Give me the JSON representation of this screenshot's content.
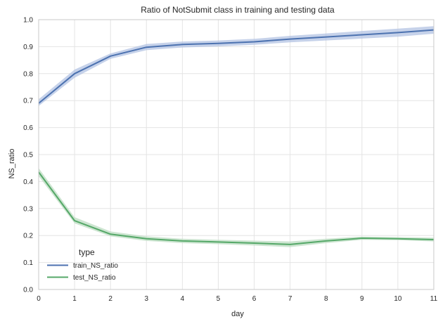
{
  "chart_data": {
    "type": "line",
    "title": "Ratio of NotSubmit class in training and testing data",
    "xlabel": "day",
    "ylabel": "NS_ratio",
    "x": [
      0,
      1,
      2,
      3,
      4,
      5,
      6,
      7,
      8,
      9,
      10,
      11
    ],
    "xlim": [
      0,
      11
    ],
    "ylim": [
      0.0,
      1.0
    ],
    "xticks": [
      "0",
      "1",
      "2",
      "3",
      "4",
      "5",
      "6",
      "7",
      "8",
      "9",
      "10",
      "11"
    ],
    "yticks": [
      "0.0",
      "0.1",
      "0.2",
      "0.3",
      "0.4",
      "0.5",
      "0.6",
      "0.7",
      "0.8",
      "0.9",
      "1.0"
    ],
    "grid": true,
    "legend": {
      "title": "type",
      "position": "bottom-left"
    },
    "series": [
      {
        "name": "train_NS_ratio",
        "color": "#4c72b0",
        "band_color": "#b3c3e3",
        "values": [
          0.69,
          0.8,
          0.865,
          0.898,
          0.908,
          0.912,
          0.918,
          0.928,
          0.936,
          0.944,
          0.952,
          0.962
        ],
        "ci_low": [
          0.68,
          0.785,
          0.855,
          0.887,
          0.897,
          0.901,
          0.907,
          0.916,
          0.923,
          0.93,
          0.937,
          0.948
        ],
        "ci_high": [
          0.705,
          0.815,
          0.875,
          0.91,
          0.919,
          0.923,
          0.929,
          0.94,
          0.949,
          0.958,
          0.967,
          0.976
        ]
      },
      {
        "name": "test_NS_ratio",
        "color": "#55a868",
        "band_color": "#bcdcc2",
        "values": [
          0.435,
          0.255,
          0.205,
          0.188,
          0.18,
          0.176,
          0.172,
          0.167,
          0.18,
          0.19,
          0.188,
          0.185
        ],
        "ci_low": [
          0.42,
          0.245,
          0.197,
          0.18,
          0.172,
          0.168,
          0.163,
          0.157,
          0.172,
          0.184,
          0.183,
          0.178
        ],
        "ci_high": [
          0.45,
          0.268,
          0.215,
          0.197,
          0.188,
          0.184,
          0.181,
          0.178,
          0.188,
          0.196,
          0.194,
          0.192
        ]
      }
    ]
  }
}
